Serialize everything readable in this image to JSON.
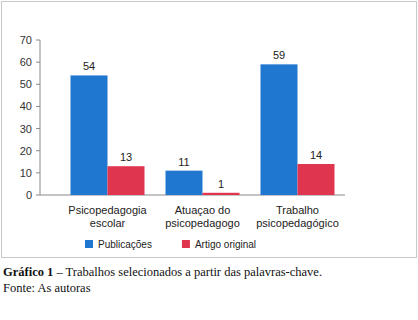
{
  "chart_data": {
    "type": "bar",
    "title": "Gráfico 1 – Trabalhos selecionados a partir das palavras-chave.",
    "subtitle": "Fonte: As autoras",
    "categories": [
      "Psicopedagogia escolar",
      "Atuaçao do psicopedagogo",
      "Trabalho psicopedagógico"
    ],
    "series": [
      {
        "name": "Publicações",
        "color": "#1f77d0",
        "values": [
          54,
          11,
          59
        ]
      },
      {
        "name": "Artigo original",
        "color": "#e0354f",
        "values": [
          13,
          1,
          14
        ]
      }
    ],
    "ylim": [
      0,
      70
    ],
    "yticks": [
      0,
      10,
      20,
      30,
      40,
      50,
      60,
      70
    ],
    "grid": false,
    "legend": "bottom",
    "data_labels": true
  }
}
